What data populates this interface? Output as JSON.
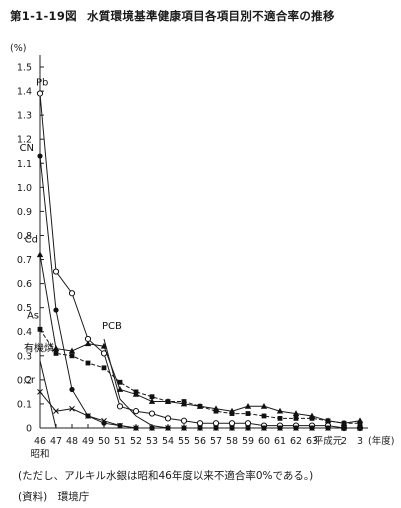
{
  "figure": {
    "number": "第1-1-19図",
    "title": "水質環境基準健康項目各項目別不適合率の推移"
  },
  "note": "(ただし、アルキル水銀は昭和46年度以来不適合率0%である。)",
  "source": "(資料)　環境庁",
  "chart_data": {
    "type": "line",
    "title": "水質環境基準健康項目各項目別不適合率の推移",
    "ylabel": "(%)",
    "xlabel": "(年度)",
    "ylim": [
      0,
      1.5
    ],
    "ytick_labels": [
      "0",
      "0.1",
      "0.2",
      "0.3",
      "0.4",
      "0.5",
      "0.6",
      "0.7",
      "0.8",
      "0.9",
      "1.0",
      "1.1",
      "1.2",
      "1.3",
      "1.4",
      "1.5"
    ],
    "yticks": [
      0,
      0.1,
      0.2,
      0.3,
      0.4,
      0.5,
      0.6,
      0.7,
      0.8,
      0.9,
      1.0,
      1.1,
      1.2,
      1.3,
      1.4,
      1.5
    ],
    "x": [
      46,
      47,
      48,
      49,
      50,
      51,
      52,
      53,
      54,
      55,
      56,
      57,
      58,
      59,
      60,
      61,
      62,
      63,
      64,
      2,
      3
    ],
    "x_tick_labels": [
      "46",
      "47",
      "48",
      "49",
      "50",
      "51",
      "52",
      "53",
      "54",
      "55",
      "56",
      "57",
      "58",
      "59",
      "60",
      "61",
      "62",
      "63",
      "平成元",
      "2",
      "3"
    ],
    "era_label": "昭和",
    "grid": false,
    "series": [
      {
        "name": "Pb",
        "marker": "circle-open",
        "dash": "solid",
        "values": [
          1.39,
          0.65,
          0.56,
          0.37,
          0.31,
          0.09,
          0.07,
          0.06,
          0.04,
          0.03,
          0.02,
          0.02,
          0.02,
          0.02,
          0.01,
          0.01,
          0.01,
          0.01,
          0.01,
          0.0,
          0.0
        ]
      },
      {
        "name": "CN",
        "marker": "circle-filled",
        "dash": "solid",
        "values": [
          1.13,
          0.49,
          0.16,
          0.05,
          0.02,
          0.01,
          0.0,
          0.0,
          0.0,
          0.0,
          0.0,
          0.0,
          0.0,
          0.0,
          0.0,
          0.0,
          0.0,
          0.0,
          0.0,
          0.0,
          0.0
        ]
      },
      {
        "name": "Cd",
        "marker": "triangle-filled",
        "dash": "solid",
        "values": [
          0.72,
          0.33,
          0.32,
          0.35,
          0.34,
          0.16,
          0.14,
          0.11,
          0.11,
          0.1,
          0.09,
          0.08,
          0.07,
          0.09,
          0.09,
          0.07,
          0.06,
          0.05,
          0.03,
          0.02,
          0.03
        ]
      },
      {
        "name": "As",
        "marker": "square-filled",
        "dash": "dashed",
        "values": [
          0.41,
          0.31,
          0.3,
          0.27,
          0.25,
          0.19,
          0.15,
          0.13,
          0.11,
          0.11,
          0.09,
          0.07,
          0.06,
          0.06,
          0.05,
          0.04,
          0.04,
          0.04,
          0.03,
          0.02,
          0.02
        ]
      },
      {
        "name": "有機燐",
        "marker": "none",
        "dash": "solid",
        "values": [
          0.28,
          0.0,
          null,
          null,
          null,
          null,
          null,
          null,
          null,
          null,
          null,
          null,
          null,
          null,
          null,
          null,
          null,
          null,
          null,
          null,
          null
        ]
      },
      {
        "name": "Cr",
        "marker": "cross",
        "dash": "solid",
        "values": [
          0.15,
          0.07,
          0.08,
          0.05,
          0.03,
          0.01,
          0.0,
          0.0,
          0.0,
          0.0,
          0.0,
          0.0,
          0.0,
          0.0,
          0.0,
          0.0,
          0.0,
          0.0,
          0.0,
          0.0,
          0.0
        ]
      },
      {
        "name": "PCB",
        "marker": "none",
        "dash": "solid",
        "values": [
          null,
          null,
          null,
          null,
          0.37,
          0.12,
          0.05,
          0.01,
          0.0,
          null,
          null,
          null,
          null,
          null,
          null,
          null,
          null,
          null,
          null,
          null,
          null
        ]
      }
    ]
  }
}
